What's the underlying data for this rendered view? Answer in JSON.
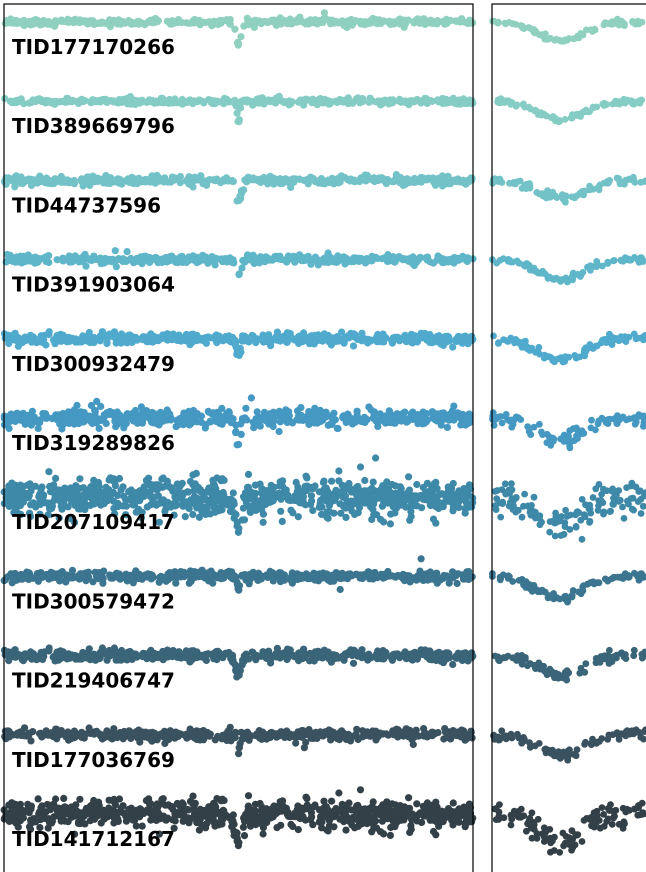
{
  "chart_data": {
    "type": "scatter",
    "title": "",
    "xlabel": "",
    "ylabel": "",
    "grid": false,
    "legend": "none",
    "panels": [
      "full-light-curve",
      "transit-zoom"
    ],
    "series": [
      {
        "name": "TID177170266",
        "color": "#8fd0be",
        "scatter": 0.16,
        "depth": 1.0,
        "width": 0.01,
        "zoom_depth": 0.85
      },
      {
        "name": "TID389669796",
        "color": "#84ccc4",
        "scatter": 0.16,
        "depth": 1.0,
        "width": 0.004,
        "zoom_depth": 0.85
      },
      {
        "name": "TID44737596",
        "color": "#72c2c8",
        "scatter": 0.22,
        "depth": 1.0,
        "width": 0.01,
        "zoom_depth": 0.85
      },
      {
        "name": "TID391903064",
        "color": "#5fb6c8",
        "scatter": 0.22,
        "depth": 0.7,
        "width": 0.008,
        "zoom_depth": 0.9
      },
      {
        "name": "TID300932479",
        "color": "#4faacd",
        "scatter": 0.28,
        "depth": 0.8,
        "width": 0.006,
        "zoom_depth": 0.95
      },
      {
        "name": "TID319289826",
        "color": "#4498c2",
        "scatter": 0.45,
        "depth": 0.9,
        "width": 0.008,
        "zoom_depth": 1.0
      },
      {
        "name": "TID207109417",
        "color": "#3e88a8",
        "scatter": 1.0,
        "depth": 1.3,
        "width": 0.01,
        "zoom_depth": 1.2
      },
      {
        "name": "TID300579472",
        "color": "#3b7590",
        "scatter": 0.3,
        "depth": 0.7,
        "width": 0.004,
        "zoom_depth": 1.0
      },
      {
        "name": "TID219406747",
        "color": "#3a6478",
        "scatter": 0.3,
        "depth": 0.9,
        "width": 0.01,
        "zoom_depth": 0.9
      },
      {
        "name": "TID177036769",
        "color": "#3a5260",
        "scatter": 0.3,
        "depth": 0.7,
        "width": 0.005,
        "zoom_depth": 0.9
      },
      {
        "name": "TID141712167",
        "color": "#344048",
        "scatter": 0.8,
        "depth": 1.2,
        "width": 0.012,
        "zoom_depth": 1.2
      }
    ],
    "transit_phase": 0.5
  }
}
